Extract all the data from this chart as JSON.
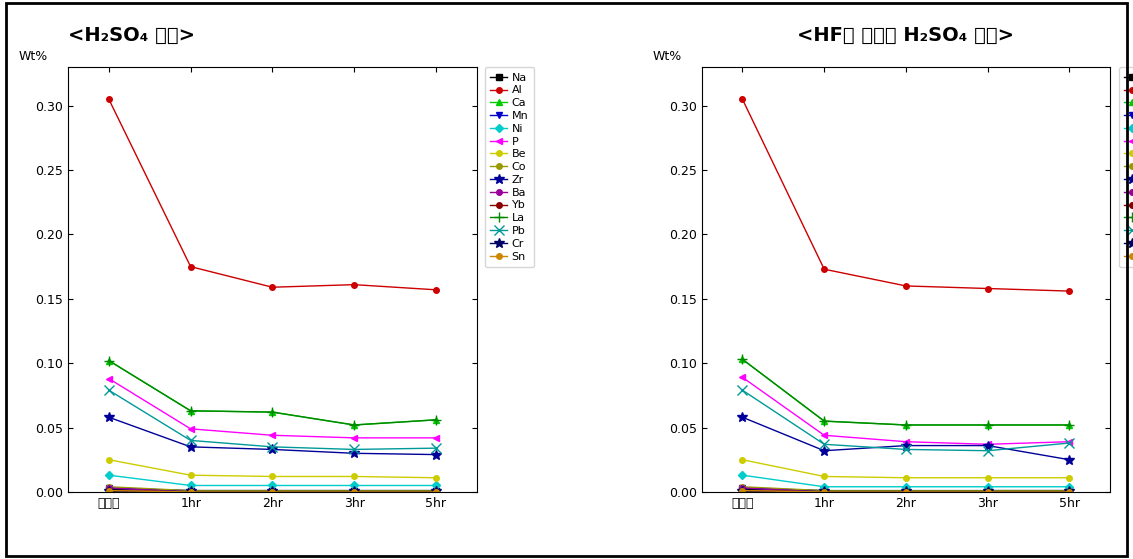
{
  "title1": "<H₂SO₄ 침출>",
  "title2": "<HF를 첨가한 H₂SO₄ 침출>",
  "ylabel": "Wt%",
  "x_labels": [
    "원시료",
    "1hr",
    "2hr",
    "3hr",
    "5hr"
  ],
  "x_positions": [
    0,
    1,
    2,
    3,
    4
  ],
  "series_order": [
    "Na",
    "Al",
    "Ca",
    "Mn",
    "Ni",
    "P",
    "Be",
    "Co",
    "Zr",
    "Ba",
    "Yb",
    "La",
    "Pb",
    "Cr",
    "Sn"
  ],
  "series": {
    "Na": {
      "color": "#000000",
      "marker": "s",
      "linestyle": "-",
      "data1": [
        0.002,
        0.001,
        0.001,
        0.001,
        0.001
      ],
      "data2": [
        0.002,
        0.001,
        0.0,
        0.001,
        0.001
      ]
    },
    "Al": {
      "color": "#cc0000",
      "marker": "o",
      "linestyle": "-",
      "data1": [
        0.305,
        0.175,
        0.159,
        0.161,
        0.157
      ],
      "data2": [
        0.305,
        0.173,
        0.16,
        0.158,
        0.156
      ]
    },
    "Ca": {
      "color": "#00cc00",
      "marker": "^",
      "linestyle": "-",
      "data1": [
        0.102,
        0.063,
        0.062,
        0.052,
        0.056
      ],
      "data2": [
        0.103,
        0.055,
        0.052,
        0.052,
        0.052
      ]
    },
    "Mn": {
      "color": "#0000cc",
      "marker": "v",
      "linestyle": "-",
      "data1": [
        0.003,
        0.001,
        0.001,
        0.001,
        0.001
      ],
      "data2": [
        0.003,
        0.001,
        0.001,
        0.001,
        0.001
      ]
    },
    "Ni": {
      "color": "#00cccc",
      "marker": "D",
      "linestyle": "-",
      "data1": [
        0.013,
        0.005,
        0.005,
        0.005,
        0.005
      ],
      "data2": [
        0.013,
        0.004,
        0.004,
        0.004,
        0.004
      ]
    },
    "P": {
      "color": "#ff00ff",
      "marker": "<",
      "linestyle": "-",
      "data1": [
        0.088,
        0.049,
        0.044,
        0.042,
        0.042
      ],
      "data2": [
        0.089,
        0.044,
        0.039,
        0.037,
        0.039
      ]
    },
    "Be": {
      "color": "#cccc00",
      "marker": "o",
      "linestyle": "-",
      "data1": [
        0.025,
        0.013,
        0.012,
        0.012,
        0.011
      ],
      "data2": [
        0.025,
        0.012,
        0.011,
        0.011,
        0.011
      ]
    },
    "Co": {
      "color": "#999900",
      "marker": "o",
      "linestyle": "-",
      "data1": [
        0.004,
        0.001,
        0.001,
        0.001,
        0.001
      ],
      "data2": [
        0.004,
        0.001,
        0.001,
        0.001,
        0.001
      ]
    },
    "Zr": {
      "color": "#000099",
      "marker": "*",
      "linestyle": "-",
      "data1": [
        0.058,
        0.035,
        0.033,
        0.03,
        0.029
      ],
      "data2": [
        0.058,
        0.032,
        0.036,
        0.036,
        0.025
      ]
    },
    "Ba": {
      "color": "#990099",
      "marker": "o",
      "linestyle": "-",
      "data1": [
        0.003,
        0.0,
        0.0,
        0.0,
        0.0
      ],
      "data2": [
        0.003,
        0.0,
        0.0,
        0.0,
        0.0
      ]
    },
    "Yb": {
      "color": "#8B0000",
      "marker": "o",
      "linestyle": "-",
      "data1": [
        0.001,
        0.0,
        0.0,
        0.0,
        0.0
      ],
      "data2": [
        0.001,
        0.0,
        0.0,
        0.0,
        0.0
      ]
    },
    "La": {
      "color": "#008800",
      "marker": "+",
      "linestyle": "-",
      "data1": [
        0.102,
        0.063,
        0.062,
        0.052,
        0.056
      ],
      "data2": [
        0.103,
        0.055,
        0.052,
        0.052,
        0.052
      ]
    },
    "Pb": {
      "color": "#009999",
      "marker": "x",
      "linestyle": "-",
      "data1": [
        0.079,
        0.04,
        0.035,
        0.033,
        0.034
      ],
      "data2": [
        0.079,
        0.037,
        0.033,
        0.032,
        0.038
      ]
    },
    "Cr": {
      "color": "#000066",
      "marker": "*",
      "linestyle": "-",
      "data1": [
        0.001,
        0.001,
        0.001,
        0.001,
        0.001
      ],
      "data2": [
        0.001,
        0.001,
        0.001,
        0.001,
        0.001
      ]
    },
    "Sn": {
      "color": "#cc8800",
      "marker": "o",
      "linestyle": "-",
      "data1": [
        0.001,
        0.0,
        0.0,
        0.0,
        0.0
      ],
      "data2": [
        0.001,
        0.0,
        0.0,
        0.0,
        0.0
      ]
    }
  },
  "ylim": [
    0.0,
    0.33
  ],
  "yticks": [
    0.0,
    0.05,
    0.1,
    0.15,
    0.2,
    0.25,
    0.3
  ],
  "figsize": [
    11.33,
    5.59
  ],
  "dpi": 100,
  "bg_color": "#ffffff"
}
